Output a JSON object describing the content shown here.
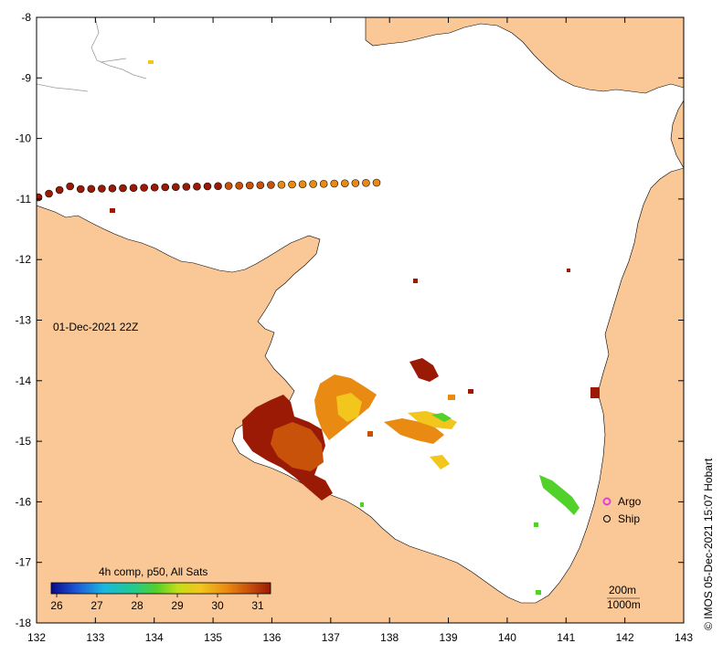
{
  "map": {
    "x_ticks": [
      "132",
      "133",
      "134",
      "135",
      "136",
      "137",
      "138",
      "139",
      "140",
      "141",
      "142",
      "143"
    ],
    "y_ticks": [
      "-8",
      "-9",
      "-10",
      "-11",
      "-12",
      "-13",
      "-14",
      "-15",
      "-16",
      "-17",
      "-18"
    ],
    "date_label": "01-Dec-2021 22Z",
    "credit": "© IMOS 05-Dec-2021 15:07 Hobart",
    "colorbar": {
      "title": "4h comp, p50, All Sats",
      "ticks": [
        "26",
        "27",
        "28",
        "29",
        "30",
        "31"
      ],
      "stops": [
        "#0a0a8c",
        "#1f5bd6",
        "#19b7e0",
        "#25c98a",
        "#53d12b",
        "#c6dd16",
        "#f2c61c",
        "#e98a12",
        "#c9520b",
        "#9a1a06"
      ]
    },
    "legend": {
      "argo_label": "Argo",
      "ship_label": "Ship",
      "scale_200": "200m",
      "scale_1000": "1000m"
    },
    "colors": {
      "land": "#fac896",
      "water": "#ffffff",
      "warm": "#c9520b",
      "hot": "#9a1a06",
      "mid": "#e98a12",
      "yellow": "#f2c61c",
      "green": "#53d12b",
      "argo": "#e040e0"
    }
  }
}
